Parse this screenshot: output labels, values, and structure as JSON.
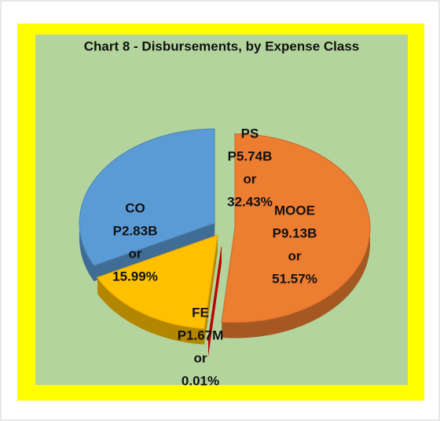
{
  "chart_data": {
    "type": "pie",
    "title": "Chart 8 - Disbursements, by Expense Class",
    "categories": [
      "MOOE",
      "FE",
      "CO",
      "PS"
    ],
    "values": [
      51.57,
      0.01,
      15.99,
      32.43
    ],
    "value_labels": [
      "51.57%",
      "0.01%",
      "15.99%",
      "32.43%"
    ],
    "amount_labels": [
      "P9.13B",
      "P1.67M",
      "P2.83B",
      "P5.74B"
    ],
    "connector": "or",
    "colors": [
      "#ed7d31",
      "#c00000",
      "#ffc000",
      "#5b9bd5"
    ]
  }
}
